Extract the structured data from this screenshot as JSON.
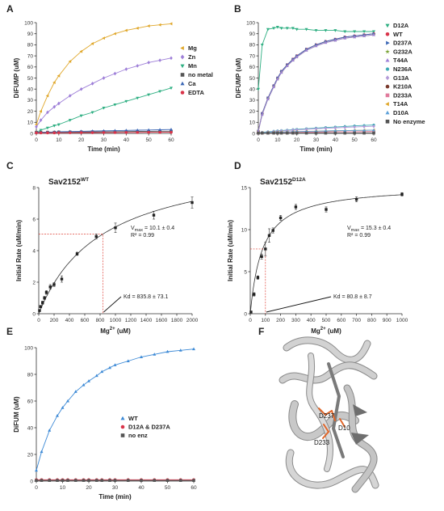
{
  "panels": {
    "A": {
      "label": "A"
    },
    "B": {
      "label": "B"
    },
    "C": {
      "label": "C"
    },
    "D": {
      "label": "D"
    },
    "E": {
      "label": "E"
    },
    "F": {
      "label": "F"
    }
  },
  "structure": {
    "labels": [
      "D237",
      "D10",
      "D233"
    ],
    "colors": {
      "ribbon": "#c8c8c8",
      "ribbon_edge": "#8a8a8a",
      "sticks": "#e0662a"
    }
  },
  "chart_data": [
    {
      "id": "A",
      "type": "line",
      "xlabel": "Time (min)",
      "ylabel": "DiFUMP (uM)",
      "xlim": [
        0,
        60
      ],
      "ylim": [
        0,
        100
      ],
      "xticks": [
        0,
        10,
        20,
        30,
        40,
        50,
        60
      ],
      "yticks": [
        0,
        10,
        20,
        30,
        40,
        50,
        60,
        70,
        80,
        90,
        100
      ],
      "legend_position": "right",
      "x": [
        0,
        2,
        5,
        8,
        10,
        15,
        20,
        25,
        30,
        35,
        40,
        45,
        50,
        55,
        60
      ],
      "series": [
        {
          "name": "Mg",
          "color": "#e0a72a",
          "marker": "triangle-left",
          "values": [
            8,
            20,
            34,
            46,
            52,
            65,
            74,
            81,
            86,
            90,
            93,
            95,
            97,
            98,
            99
          ]
        },
        {
          "name": "Zn",
          "color": "#9e7fd8",
          "marker": "diamond",
          "values": [
            6,
            12,
            19,
            24,
            27,
            34,
            40,
            45,
            50,
            54,
            58,
            61,
            64,
            66,
            68
          ]
        },
        {
          "name": "Mn",
          "color": "#2eaf82",
          "marker": "triangle-down",
          "values": [
            1,
            3,
            5,
            7,
            8,
            12,
            16,
            19,
            23,
            26,
            29,
            32,
            35,
            38,
            41
          ]
        },
        {
          "name": "no metal",
          "color": "#555555",
          "marker": "square",
          "values": [
            1,
            1,
            1,
            1,
            1.2,
            1.2,
            1.3,
            1.4,
            1.5,
            1.6,
            1.7,
            1.8,
            1.9,
            2,
            2
          ]
        },
        {
          "name": "Ca",
          "color": "#3a66b5",
          "marker": "triangle-up",
          "values": [
            1,
            1,
            1.2,
            1.3,
            1.5,
            1.7,
            1.9,
            2.1,
            2.3,
            2.5,
            2.7,
            2.9,
            3.1,
            3.3,
            3.5
          ]
        },
        {
          "name": "EDTA",
          "color": "#d9344a",
          "marker": "circle",
          "values": [
            0.5,
            0.5,
            0.5,
            0.5,
            0.6,
            0.6,
            0.7,
            0.7,
            0.8,
            0.8,
            0.9,
            0.9,
            1,
            1,
            1
          ]
        }
      ]
    },
    {
      "id": "B",
      "type": "line",
      "xlabel": "Time (min)",
      "ylabel": "DiFUMP (uM)",
      "xlim": [
        0,
        60
      ],
      "ylim": [
        0,
        100
      ],
      "xticks": [
        0,
        10,
        20,
        30,
        40,
        50,
        60
      ],
      "yticks": [
        0,
        10,
        20,
        30,
        40,
        50,
        60,
        70,
        80,
        90,
        100
      ],
      "legend_position": "right",
      "x": [
        0,
        2,
        5,
        8,
        10,
        12,
        15,
        18,
        20,
        25,
        30,
        35,
        40,
        45,
        50,
        55,
        60
      ],
      "series": [
        {
          "name": "D12A",
          "color": "#2eaf82",
          "marker": "triangle-down",
          "values": [
            40,
            80,
            94,
            95,
            96,
            95,
            95,
            95,
            94,
            94,
            93,
            93,
            93,
            92,
            92,
            92,
            92
          ]
        },
        {
          "name": "WT",
          "color": "#d9344a",
          "marker": "circle",
          "values": [
            2,
            18,
            32,
            43,
            50,
            56,
            62,
            67,
            70,
            76,
            80,
            83,
            85,
            87,
            88,
            89,
            90
          ]
        },
        {
          "name": "D237A",
          "color": "#3a66b5",
          "marker": "triangle-right",
          "values": [
            2,
            18,
            32,
            43,
            50,
            56,
            62,
            67,
            70,
            76,
            80,
            83,
            85,
            87,
            88,
            89,
            90
          ]
        },
        {
          "name": "G232A",
          "color": "#7ba437",
          "marker": "star",
          "values": [
            2,
            17,
            31,
            42,
            49,
            55,
            61,
            66,
            69,
            75,
            79,
            82,
            84,
            86,
            87,
            88,
            89
          ]
        },
        {
          "name": "T44A",
          "color": "#9e7fd8",
          "marker": "triangle-up",
          "values": [
            2,
            17,
            31,
            42,
            49,
            55,
            61,
            66,
            69,
            75,
            79,
            82,
            84,
            86,
            87,
            88,
            89
          ]
        },
        {
          "name": "N236A",
          "color": "#3aa9b4",
          "marker": "hexagon",
          "values": [
            0.5,
            1,
            1.5,
            2,
            2.3,
            2.6,
            3,
            3.4,
            3.7,
            4.2,
            4.8,
            5.3,
            5.8,
            6.3,
            6.8,
            7.2,
            7.6
          ]
        },
        {
          "name": "G13A",
          "color": "#b39ad8",
          "marker": "diamond",
          "values": [
            0.5,
            0.8,
            1.2,
            1.6,
            1.9,
            2.2,
            2.6,
            3,
            3.2,
            3.7,
            4.2,
            4.6,
            5,
            5.4,
            5.8,
            6.1,
            6.4
          ]
        },
        {
          "name": "K210A",
          "color": "#7a3b2e",
          "marker": "circle",
          "values": [
            0.3,
            0.4,
            0.5,
            0.6,
            0.7,
            0.8,
            0.9,
            1,
            1,
            1.1,
            1.2,
            1.3,
            1.4,
            1.5,
            1.5,
            1.6,
            1.7
          ]
        },
        {
          "name": "D233A",
          "color": "#e07a9c",
          "marker": "square",
          "values": [
            0.3,
            0.4,
            0.5,
            0.6,
            0.7,
            0.8,
            0.9,
            1,
            1,
            1.1,
            1.2,
            1.3,
            1.4,
            1.5,
            1.5,
            1.6,
            1.7
          ]
        },
        {
          "name": "T14A",
          "color": "#e0a72a",
          "marker": "triangle-left",
          "values": [
            0.5,
            0.6,
            0.8,
            1,
            1.1,
            1.2,
            1.4,
            1.5,
            1.6,
            1.8,
            2,
            2.2,
            2.4,
            2.5,
            2.7,
            2.8,
            3
          ]
        },
        {
          "name": "D10A",
          "color": "#5a9fd8",
          "marker": "triangle-up",
          "values": [
            0.5,
            0.6,
            0.8,
            1,
            1.1,
            1.2,
            1.4,
            1.5,
            1.6,
            1.8,
            2,
            2.2,
            2.4,
            2.5,
            2.7,
            2.8,
            3
          ]
        },
        {
          "name": "No enzyme",
          "color": "#555555",
          "marker": "square",
          "values": [
            0.3,
            0.3,
            0.3,
            0.3,
            0.3,
            0.3,
            0.3,
            0.3,
            0.3,
            0.3,
            0.3,
            0.3,
            0.3,
            0.3,
            0.3,
            0.3,
            0.3
          ]
        }
      ]
    },
    {
      "id": "C",
      "type": "scatter",
      "title": "Sav2152",
      "title_sup": "WT",
      "xlabel": "Mg",
      "xlabel_sup": "2+",
      "xlabel_unit": " (uM)",
      "ylabel": "Initial Rate (uM/min)",
      "xlim": [
        0,
        2000
      ],
      "ylim": [
        0,
        8
      ],
      "xticks": [
        0,
        200,
        400,
        600,
        800,
        1000,
        1200,
        1400,
        1600,
        1800,
        2000
      ],
      "yticks": [
        0,
        2,
        4,
        6,
        8
      ],
      "x": [
        10,
        25,
        50,
        75,
        100,
        150,
        200,
        300,
        500,
        750,
        1000,
        1500,
        2000
      ],
      "values": [
        0.2,
        0.45,
        0.7,
        1.0,
        1.35,
        1.7,
        1.85,
        2.2,
        3.8,
        4.9,
        5.45,
        6.25,
        7.05
      ],
      "errors": [
        0.05,
        0.08,
        0.1,
        0.1,
        0.12,
        0.15,
        0.12,
        0.2,
        0.1,
        0.15,
        0.3,
        0.25,
        0.35
      ],
      "fit": {
        "vmax": 10.1,
        "kd": 835.8
      },
      "guide": {
        "x": 835.8,
        "y": 5.05
      },
      "annotations": {
        "vmax_label": "V",
        "vmax_sub": "max",
        "vmax_text": " = 10.1 ± 0.4",
        "r2": "R² = 0.99",
        "kd": "Kd = 835.8 ± 73.1"
      },
      "legend_position": "none"
    },
    {
      "id": "D",
      "type": "scatter",
      "title": "Sav2152",
      "title_sup": "D12A",
      "xlabel": "Mg",
      "xlabel_sup": "2+",
      "xlabel_unit": " (uM)",
      "ylabel": "Initial Rate (uM/min)",
      "xlim": [
        0,
        1000
      ],
      "ylim": [
        0,
        15
      ],
      "xticks": [
        0,
        100,
        200,
        300,
        400,
        500,
        600,
        700,
        800,
        900,
        1000
      ],
      "yticks": [
        0,
        5,
        10,
        15
      ],
      "x": [
        5,
        25,
        50,
        75,
        100,
        125,
        150,
        200,
        300,
        500,
        700,
        1000
      ],
      "values": [
        0.2,
        2.3,
        4.3,
        6.8,
        7.7,
        9.3,
        9.9,
        11.4,
        12.7,
        12.4,
        13.6,
        14.2
      ],
      "errors": [
        0.1,
        0.2,
        0.2,
        0.3,
        0.8,
        0.8,
        0.3,
        0.3,
        0.3,
        0.3,
        0.3,
        0.2
      ],
      "fit": {
        "vmax": 15.3,
        "kd": 80.8
      },
      "guide": {
        "x": 100,
        "y": 7.7
      },
      "annotations": {
        "vmax_label": "V",
        "vmax_sub": "max",
        "vmax_text": " = 15.3 ± 0.4",
        "r2": "R² = 0.99",
        "kd": "Kd = 80.8 ± 8.7"
      },
      "legend_position": "none"
    },
    {
      "id": "E",
      "type": "line",
      "xlabel": "Time (min)",
      "ylabel": "DiFUM (uM)",
      "xlim": [
        0,
        60
      ],
      "ylim": [
        0,
        100
      ],
      "xticks": [
        0,
        10,
        20,
        30,
        40,
        50,
        60
      ],
      "yticks": [
        0,
        20,
        40,
        60,
        80,
        100
      ],
      "legend_position": "right",
      "x": [
        0,
        2,
        5,
        8,
        10,
        12,
        15,
        18,
        20,
        23,
        25,
        28,
        30,
        35,
        40,
        45,
        50,
        55,
        60
      ],
      "series": [
        {
          "name": "WT",
          "color": "#3d8ad6",
          "marker": "triangle-up",
          "values": [
            8,
            22,
            38,
            49,
            55,
            60,
            67,
            72,
            75,
            79,
            82,
            85,
            87,
            90,
            93,
            95,
            97,
            98,
            99
          ]
        },
        {
          "name": "D12A & D237A",
          "color": "#d9344a",
          "marker": "circle",
          "values": [
            1,
            1,
            1,
            1,
            1,
            1,
            1,
            1,
            1,
            1,
            1,
            1,
            1,
            1,
            1,
            1,
            1,
            1,
            1
          ]
        },
        {
          "name": "no enz",
          "color": "#555555",
          "marker": "square",
          "values": [
            0.5,
            0.5,
            0.5,
            0.5,
            0.5,
            0.5,
            0.5,
            0.5,
            0.5,
            0.5,
            0.5,
            0.5,
            0.5,
            0.5,
            0.5,
            0.5,
            0.5,
            0.5,
            0.5
          ]
        }
      ]
    }
  ]
}
